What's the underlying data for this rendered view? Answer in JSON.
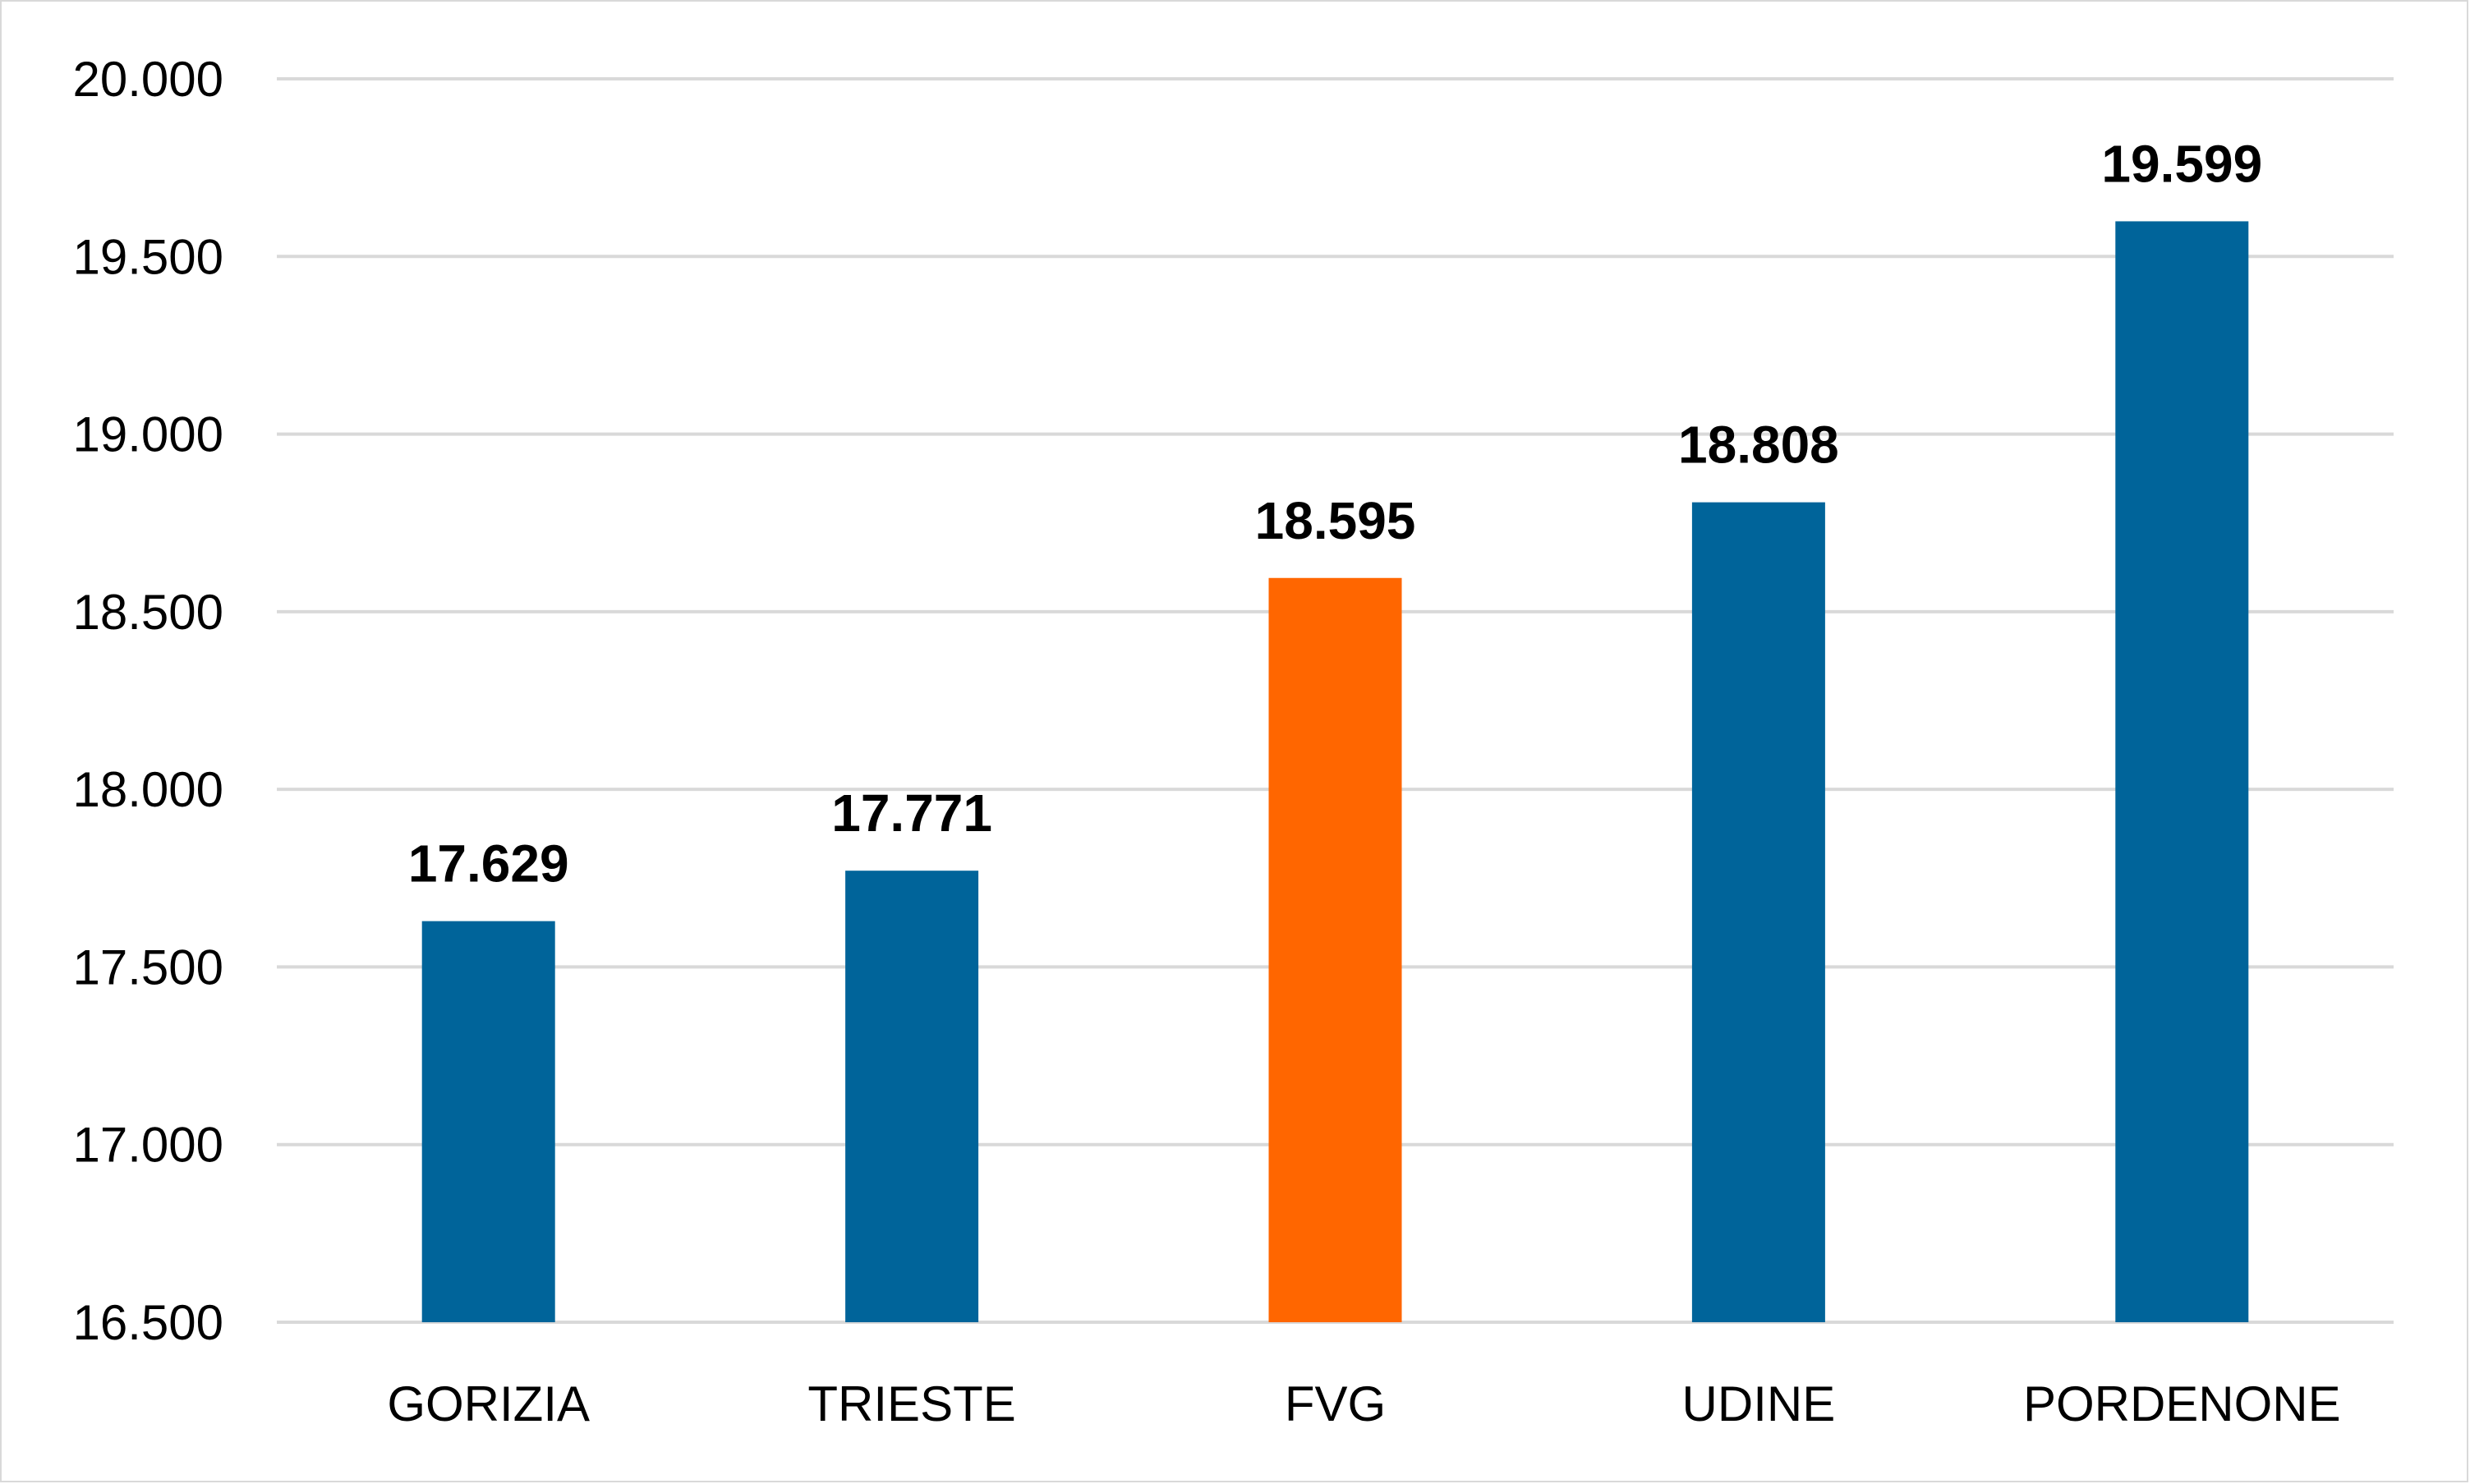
{
  "chart_data": {
    "type": "bar",
    "categories": [
      "GORIZIA",
      "TRIESTE",
      "FVG",
      "UDINE",
      "PORDENONE"
    ],
    "values": [
      17629,
      17771,
      18595,
      18808,
      19599
    ],
    "value_labels": [
      "17.629",
      "17.771",
      "18.595",
      "18.808",
      "19.599"
    ],
    "colors": [
      "#00649a",
      "#00649a",
      "#ff6600",
      "#00649a",
      "#00649a"
    ],
    "ylim": [
      16500,
      20000
    ],
    "yticks": [
      16500,
      17000,
      17500,
      18000,
      18500,
      19000,
      19500,
      20000
    ],
    "ytick_labels": [
      "16.500",
      "17.000",
      "17.500",
      "18.000",
      "18.500",
      "19.000",
      "19.500",
      "20.000"
    ],
    "grid": true,
    "legend": "none"
  }
}
